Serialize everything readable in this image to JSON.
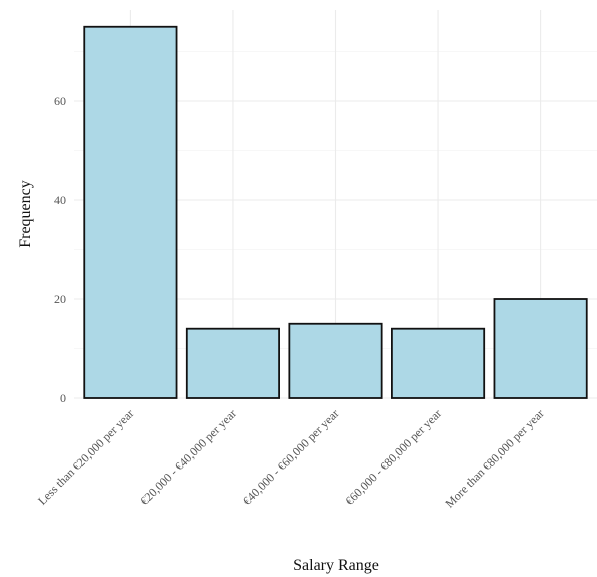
{
  "chart_data": {
    "type": "bar",
    "categories": [
      "Less than €20,000 per year",
      "€20,000 - €40,000 per year",
      "€40,000 - €60,000 per year",
      "€60,000 - €80,000 per year",
      "More than €80,000 per year"
    ],
    "values": [
      75,
      14,
      15,
      14,
      20
    ],
    "title": "",
    "xlabel": "Salary Range",
    "ylabel": "Frequency",
    "ylim": [
      0,
      79
    ],
    "yticks": [
      0,
      20,
      40,
      60
    ],
    "grid": true,
    "legend": "none",
    "bar_fill": "#add8e6",
    "bar_outline": "#111111"
  }
}
